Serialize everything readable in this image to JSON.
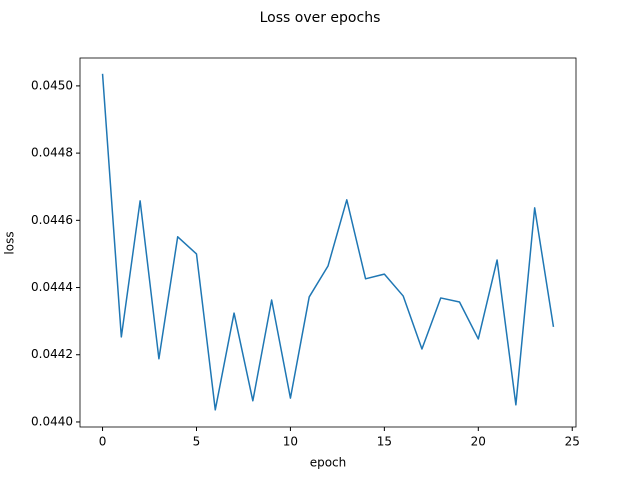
{
  "chart_data": {
    "type": "line",
    "title": "Loss over epochs",
    "x_label": "epoch",
    "y_label": "loss",
    "x": [
      0,
      1,
      2,
      3,
      4,
      5,
      6,
      7,
      8,
      9,
      10,
      11,
      12,
      13,
      14,
      15,
      16,
      17,
      18,
      19,
      20,
      21,
      22,
      23,
      24
    ],
    "series": [
      {
        "name": "loss",
        "color": "#1f77b4",
        "values": [
          0.045036,
          0.044253,
          0.044658,
          0.044188,
          0.044551,
          0.0445,
          0.044036,
          0.044324,
          0.044063,
          0.044363,
          0.044071,
          0.044372,
          0.044464,
          0.044661,
          0.044426,
          0.04444,
          0.044375,
          0.044217,
          0.044369,
          0.044357,
          0.044247,
          0.044482,
          0.044051,
          0.044637,
          0.044283
        ]
      }
    ],
    "xlim": [
      -1.2,
      25.2
    ],
    "xticks": [
      0,
      5,
      10,
      15,
      20,
      25
    ],
    "ylim": [
      0.043985,
      0.045083
    ],
    "yticks": [
      {
        "value": 0.044,
        "label": "0.0440"
      },
      {
        "value": 0.0442,
        "label": "0.0442"
      },
      {
        "value": 0.0444,
        "label": "0.0444"
      },
      {
        "value": 0.0446,
        "label": "0.0446"
      },
      {
        "value": 0.0448,
        "label": "0.0448"
      },
      {
        "value": 0.045,
        "label": "0.0450"
      }
    ],
    "grid": false,
    "legend": false
  }
}
